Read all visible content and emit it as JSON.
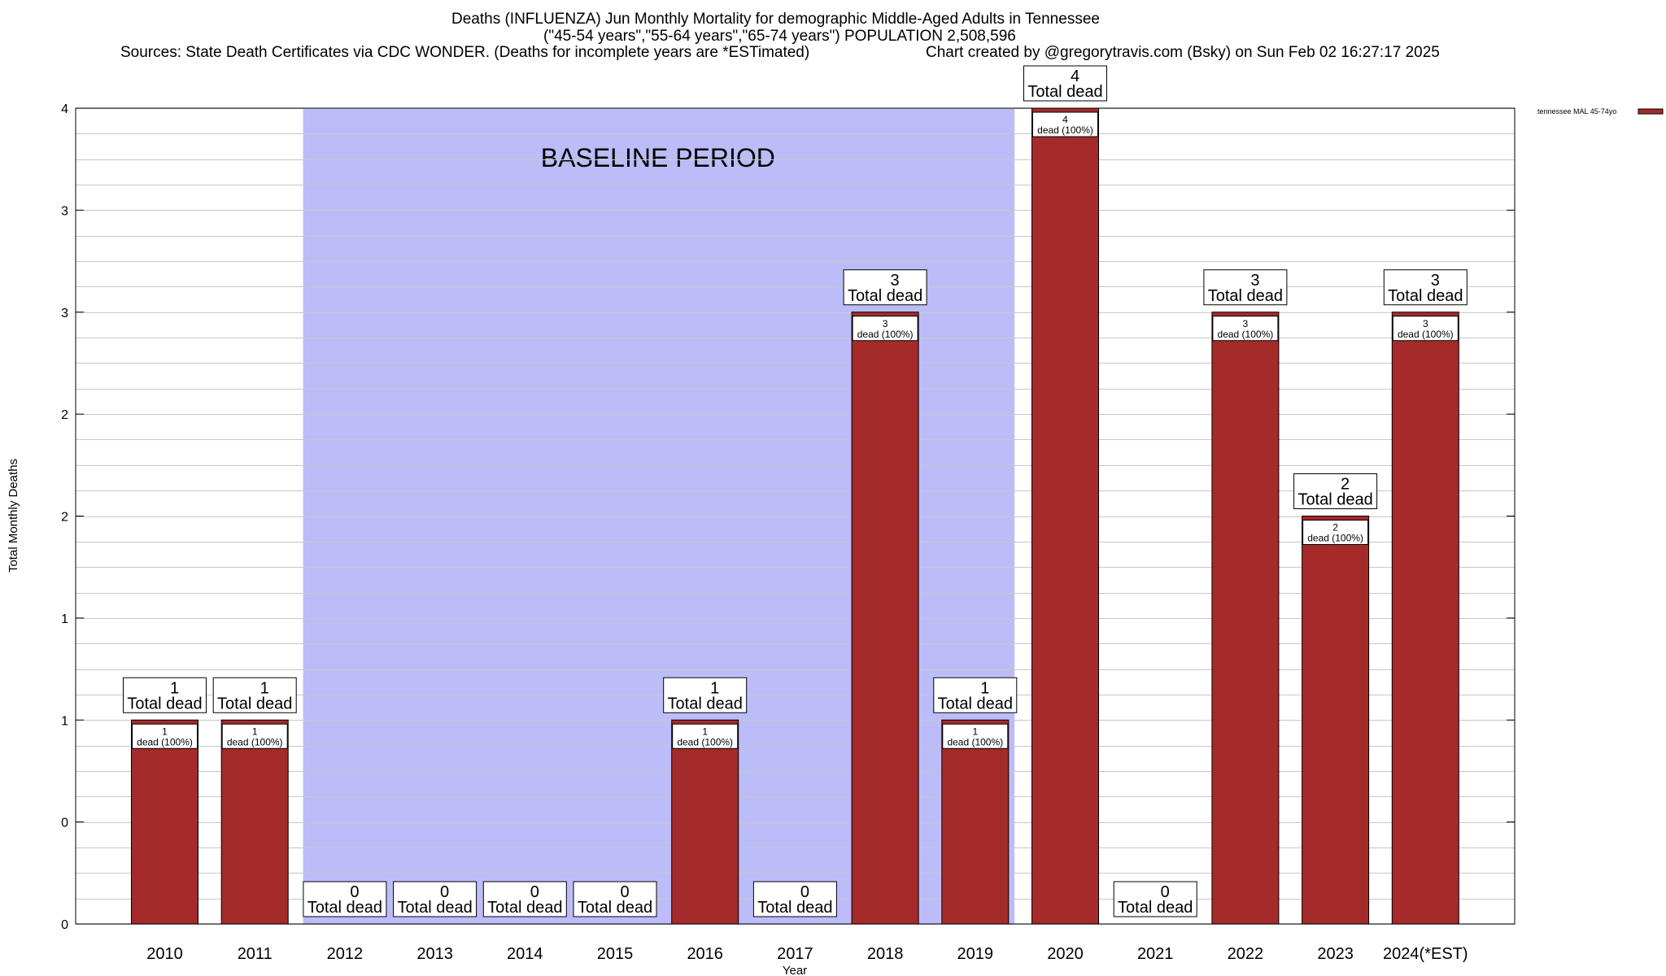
{
  "titles": {
    "line1": "Deaths (INFLUENZA) Jun Monthly Mortality for demographic Middle-Aged Adults in Tennessee",
    "line2": "(\"45-54 years\",\"55-64 years\",\"65-74 years\") POPULATION 2,508,596",
    "line3": "Sources: State Death Certificates via CDC WONDER. (Deaths for incomplete years are *ESTimated)",
    "line4": "Chart created by @gregorytravis.com (Bsky) on Sun Feb 02 16:27:17 2025"
  },
  "chart_data": {
    "type": "bar",
    "xlabel": "Year",
    "ylabel": "Total Monthly Deaths",
    "ylim": [
      0,
      4
    ],
    "y_tick_values": [
      0,
      0.5,
      1,
      1.5,
      2,
      2.5,
      3,
      3.5,
      4
    ],
    "y_tick_labels": [
      "0",
      "0",
      "1",
      "1",
      "2",
      "2",
      "3",
      "3",
      "4"
    ],
    "categories": [
      "2010",
      "2011",
      "2012",
      "2013",
      "2014",
      "2015",
      "2016",
      "2017",
      "2018",
      "2019",
      "2020",
      "2021",
      "2022",
      "2023",
      "2024(*EST)"
    ],
    "series": [
      {
        "name": "tennessee MAL 45-74yo",
        "color": "#a52a2a",
        "values": [
          1,
          1,
          0,
          0,
          0,
          0,
          1,
          0,
          3,
          1,
          4,
          0,
          3,
          2,
          3
        ]
      }
    ],
    "total_label_suffix": "Total dead",
    "inner_label_suffix": "dead (100%)",
    "baseline": {
      "label": "BASELINE PERIOD",
      "from": "2012",
      "to": "2019",
      "color": "#bcbcf8"
    },
    "grid": true,
    "legend": "top-right"
  }
}
